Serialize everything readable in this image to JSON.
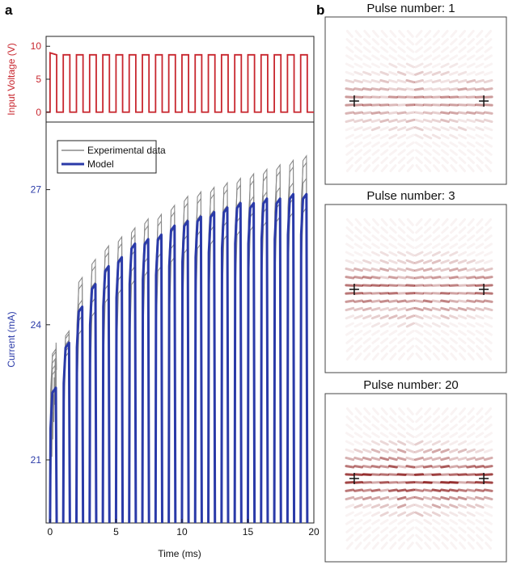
{
  "panel_labels": {
    "a": "a",
    "b": "b"
  },
  "colors": {
    "voltage": "#c8262e",
    "model": "#2a3aa8",
    "experimental": "#8a8a8a",
    "heat": "#8b1a1a"
  },
  "chart_data": [
    {
      "type": "line",
      "panel": "a-top",
      "ylabel": "Input Voltage (V)",
      "xlim": [
        -0.3,
        20
      ],
      "ylim": [
        -1.5,
        11.5
      ],
      "yticks": [
        0,
        5,
        10
      ],
      "ytick_labels": [
        "0",
        "5",
        "10"
      ],
      "pulse_count": 20,
      "period_ms": 1.0,
      "duty_cycle": 0.5,
      "high_level_v": 8.7,
      "first_high_v": 9.0,
      "low_level_v": 0
    },
    {
      "type": "line",
      "panel": "a-bottom",
      "xlabel": "Time (ms)",
      "ylabel": "Current (mA)",
      "xlim": [
        -0.3,
        20
      ],
      "ylim": [
        19.6,
        28.5
      ],
      "xticks": [
        0,
        5,
        10,
        15,
        20
      ],
      "xtick_labels": [
        "0",
        "5",
        "10",
        "15",
        "20"
      ],
      "yticks": [
        21,
        24,
        27
      ],
      "ytick_labels": [
        "21",
        "24",
        "27"
      ],
      "legend": {
        "position": "top-left",
        "entries": [
          "Experimental data",
          "Model"
        ]
      },
      "series": [
        {
          "name": "Experimental data",
          "pulse_starts_ms": [
            0,
            1,
            2,
            3,
            4,
            5,
            6,
            7,
            8,
            9,
            10,
            11,
            12,
            13,
            14,
            15,
            16,
            17,
            18,
            19
          ],
          "peak_current_ma": [
            23.4,
            23.8,
            24.9,
            25.3,
            25.6,
            25.8,
            26.0,
            26.2,
            26.3,
            26.5,
            26.7,
            26.8,
            26.9,
            27.0,
            27.1,
            27.2,
            27.3,
            27.4,
            27.5,
            27.6
          ],
          "baseline_current_ma": 19.6
        },
        {
          "name": "Model",
          "pulse_starts_ms": [
            0,
            1,
            2,
            3,
            4,
            5,
            6,
            7,
            8,
            9,
            10,
            11,
            12,
            13,
            14,
            15,
            16,
            17,
            18,
            19
          ],
          "peak_current_ma": [
            22.6,
            23.6,
            24.4,
            24.9,
            25.3,
            25.5,
            25.8,
            25.9,
            26.0,
            26.2,
            26.3,
            26.4,
            26.5,
            26.6,
            26.7,
            26.7,
            26.8,
            26.8,
            26.9,
            26.9
          ],
          "baseline_current_ma": 19.6
        }
      ]
    },
    {
      "type": "heatmap",
      "panel": "b",
      "maps": [
        {
          "title": "Pulse number: 1",
          "intensity": 0.55
        },
        {
          "title": "Pulse number: 3",
          "intensity": 0.75
        },
        {
          "title": "Pulse number: 20",
          "intensity": 1.0
        }
      ]
    }
  ]
}
